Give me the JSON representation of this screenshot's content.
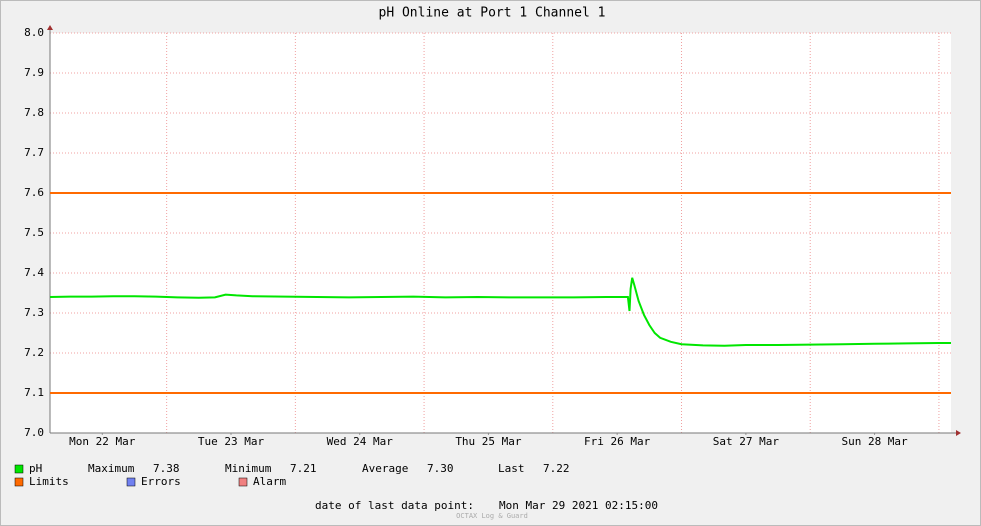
{
  "chart_data": {
    "type": "line",
    "title": "pH Online at Port 1 Channel 1",
    "x": [
      2.25,
      6,
      10,
      14,
      18,
      22,
      26,
      30,
      33,
      35,
      37,
      40,
      46,
      52,
      58,
      64,
      70,
      76,
      82,
      88,
      94,
      100,
      106,
      110,
      110.3,
      110.5,
      110.8,
      111.2,
      112,
      113,
      114,
      115,
      116,
      118,
      120,
      124,
      128,
      132,
      138,
      144,
      150,
      156,
      162,
      168,
      170.25
    ],
    "series": [
      {
        "name": "pH",
        "color": "#00e600",
        "values": [
          7.34,
          7.341,
          7.341,
          7.342,
          7.342,
          7.341,
          7.339,
          7.338,
          7.339,
          7.346,
          7.344,
          7.342,
          7.341,
          7.34,
          7.339,
          7.34,
          7.341,
          7.339,
          7.34,
          7.339,
          7.339,
          7.339,
          7.34,
          7.34,
          7.305,
          7.36,
          7.388,
          7.37,
          7.33,
          7.295,
          7.27,
          7.25,
          7.238,
          7.228,
          7.222,
          7.219,
          7.218,
          7.22,
          7.22,
          7.221,
          7.222,
          7.223,
          7.224,
          7.225,
          7.225
        ]
      }
    ],
    "limits": {
      "name": "Limits",
      "color": "#ff6a00",
      "values": [
        7.6,
        7.1
      ]
    },
    "legend_extra": [
      {
        "name": "Errors",
        "color": "#7080f0"
      },
      {
        "name": "Alarm",
        "color": "#f08080"
      }
    ],
    "stats": [
      {
        "label": "Maximum",
        "value": "7.38"
      },
      {
        "label": "Minimum",
        "value": "7.21"
      },
      {
        "label": "Average",
        "value": "7.30"
      },
      {
        "label": "Last",
        "value": "7.22"
      }
    ],
    "xlim": [
      2.25,
      170.25
    ],
    "xticks": [
      {
        "value": 12,
        "label": "Mon 22 Mar"
      },
      {
        "value": 36,
        "label": "Tue 23 Mar"
      },
      {
        "value": 60,
        "label": "Wed 24 Mar"
      },
      {
        "value": 84,
        "label": "Thu 25 Mar"
      },
      {
        "value": 108,
        "label": "Fri 26 Mar"
      },
      {
        "value": 132,
        "label": "Sat 27 Mar"
      },
      {
        "value": 156,
        "label": "Sun 28 Mar"
      }
    ],
    "xgrid": [
      24,
      48,
      72,
      96,
      120,
      144,
      168
    ],
    "ylim": [
      7,
      8
    ],
    "yticks": [
      {
        "value": 7,
        "label": "7.0"
      },
      7.1,
      7.2,
      7.3,
      7.4,
      7.5,
      7.6,
      7.7,
      7.8,
      7.9,
      {
        "value": 8,
        "label": "8.0"
      }
    ],
    "grid": true,
    "footer_label": "date of last data point:",
    "footer_date": "Mon Mar 29 2021 02:15:00",
    "watermark": "OCTAX Log & Guard"
  }
}
